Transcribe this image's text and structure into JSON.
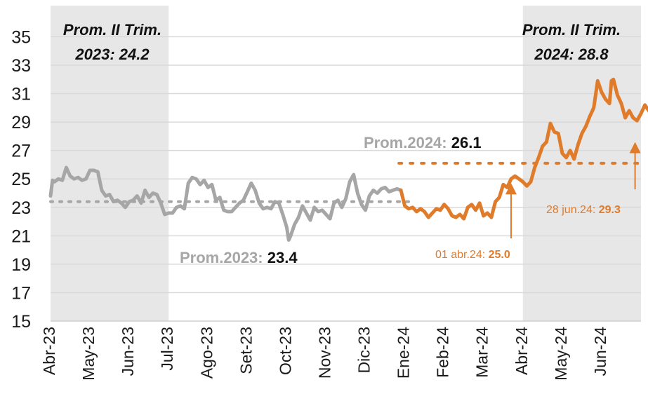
{
  "chart_data": {
    "type": "line",
    "ylim": [
      15,
      36.5
    ],
    "yticks": [
      "15",
      "17",
      "19",
      "21",
      "23",
      "25",
      "27",
      "29",
      "31",
      "33",
      "35"
    ],
    "x_categories": [
      "Abr-23",
      "May-23",
      "Jun-23",
      "Jul-23",
      "Ago-23",
      "Set-23",
      "Oct-23",
      "Nov-23",
      "Dic-23",
      "Ene-24",
      "Feb-24",
      "Mar-24",
      "Abr-24",
      "May-24",
      "Jun-24"
    ],
    "grid": true,
    "colors": {
      "series_2023": "#a6a6a6",
      "series_2024": "#e07b2a",
      "shade": "#e7e7e7",
      "grid": "#d9d9d9"
    },
    "shaded_periods": [
      {
        "from": 0,
        "to": 3,
        "label_line1": "Prom. II Trim.",
        "label_line2": "2023:  24.2"
      },
      {
        "from": 12,
        "to": 15,
        "label_line1": "Prom. II Trim.",
        "label_line2": "2024: 28.8"
      }
    ],
    "averages": [
      {
        "label": "Prom.2023: ",
        "value_text": "23.4",
        "value": 23.4,
        "from": 0,
        "to": 9.1,
        "color": "#a6a6a6"
      },
      {
        "label": "Prom.2024: ",
        "value_text": "26.1",
        "value": 26.1,
        "from": 8.85,
        "to": 15,
        "color": "#e07b2a"
      }
    ],
    "annotations": [
      {
        "label": "01 abr.24: ",
        "value_text": "25.0",
        "x": 11.7,
        "y": 24.7
      },
      {
        "label": "28 jun.24: ",
        "value_text": "29.3",
        "x": 14.85,
        "y": 27.5
      }
    ],
    "series": [
      {
        "color": "#a6a6a6",
        "points": [
          [
            0.0,
            23.8
          ],
          [
            0.05,
            24.9
          ],
          [
            0.1,
            24.8
          ],
          [
            0.2,
            25.0
          ],
          [
            0.3,
            24.9
          ],
          [
            0.4,
            25.8
          ],
          [
            0.5,
            25.2
          ],
          [
            0.6,
            25.0
          ],
          [
            0.7,
            25.1
          ],
          [
            0.8,
            24.9
          ],
          [
            0.9,
            25.0
          ],
          [
            1.0,
            25.6
          ],
          [
            1.1,
            25.6
          ],
          [
            1.2,
            25.5
          ],
          [
            1.3,
            24.2
          ],
          [
            1.4,
            23.8
          ],
          [
            1.5,
            23.9
          ],
          [
            1.6,
            23.4
          ],
          [
            1.7,
            23.5
          ],
          [
            1.8,
            23.3
          ],
          [
            1.9,
            23.0
          ],
          [
            2.0,
            23.4
          ],
          [
            2.1,
            23.5
          ],
          [
            2.2,
            23.8
          ],
          [
            2.3,
            23.3
          ],
          [
            2.4,
            24.2
          ],
          [
            2.5,
            23.7
          ],
          [
            2.6,
            24.0
          ],
          [
            2.7,
            23.9
          ],
          [
            2.8,
            23.3
          ],
          [
            2.9,
            22.5
          ],
          [
            3.0,
            22.6
          ],
          [
            3.1,
            22.6
          ],
          [
            3.2,
            23.0
          ],
          [
            3.3,
            23.1
          ],
          [
            3.4,
            22.9
          ],
          [
            3.5,
            24.7
          ],
          [
            3.6,
            25.1
          ],
          [
            3.7,
            25.0
          ],
          [
            3.8,
            24.6
          ],
          [
            3.9,
            24.9
          ],
          [
            4.0,
            24.4
          ],
          [
            4.1,
            24.6
          ],
          [
            4.2,
            23.5
          ],
          [
            4.3,
            23.7
          ],
          [
            4.4,
            22.8
          ],
          [
            4.5,
            22.7
          ],
          [
            4.6,
            22.7
          ],
          [
            4.7,
            23.0
          ],
          [
            4.8,
            23.3
          ],
          [
            4.9,
            23.5
          ],
          [
            5.0,
            24.1
          ],
          [
            5.1,
            24.7
          ],
          [
            5.2,
            24.2
          ],
          [
            5.3,
            23.3
          ],
          [
            5.4,
            22.9
          ],
          [
            5.5,
            23.0
          ],
          [
            5.6,
            22.9
          ],
          [
            5.7,
            23.4
          ],
          [
            5.8,
            23.3
          ],
          [
            5.9,
            22.5
          ],
          [
            6.0,
            21.6
          ],
          [
            6.05,
            20.7
          ],
          [
            6.1,
            21.0
          ],
          [
            6.2,
            21.8
          ],
          [
            6.3,
            22.3
          ],
          [
            6.4,
            23.1
          ],
          [
            6.5,
            22.6
          ],
          [
            6.6,
            22.1
          ],
          [
            6.7,
            23.0
          ],
          [
            6.8,
            22.7
          ],
          [
            6.9,
            22.8
          ],
          [
            7.0,
            22.5
          ],
          [
            7.1,
            22.2
          ],
          [
            7.2,
            23.3
          ],
          [
            7.3,
            23.5
          ],
          [
            7.4,
            23.0
          ],
          [
            7.5,
            23.6
          ],
          [
            7.6,
            24.8
          ],
          [
            7.7,
            25.3
          ],
          [
            7.8,
            24.0
          ],
          [
            7.9,
            23.2
          ],
          [
            8.0,
            22.8
          ],
          [
            8.1,
            23.8
          ],
          [
            8.2,
            24.2
          ],
          [
            8.3,
            24.0
          ],
          [
            8.4,
            24.3
          ],
          [
            8.5,
            24.4
          ],
          [
            8.6,
            24.1
          ],
          [
            8.7,
            24.2
          ],
          [
            8.8,
            24.3
          ],
          [
            8.9,
            24.2
          ]
        ]
      },
      {
        "color": "#e07b2a",
        "points": [
          [
            8.9,
            24.2
          ],
          [
            9.0,
            23.1
          ],
          [
            9.1,
            22.9
          ],
          [
            9.2,
            23.0
          ],
          [
            9.3,
            22.7
          ],
          [
            9.4,
            22.9
          ],
          [
            9.5,
            22.7
          ],
          [
            9.6,
            22.3
          ],
          [
            9.7,
            22.6
          ],
          [
            9.8,
            22.9
          ],
          [
            9.9,
            22.8
          ],
          [
            10.0,
            23.2
          ],
          [
            10.1,
            22.9
          ],
          [
            10.2,
            22.4
          ],
          [
            10.3,
            22.3
          ],
          [
            10.4,
            22.5
          ],
          [
            10.5,
            22.2
          ],
          [
            10.6,
            23.0
          ],
          [
            10.7,
            23.2
          ],
          [
            10.8,
            22.8
          ],
          [
            10.9,
            23.3
          ],
          [
            11.0,
            22.4
          ],
          [
            11.1,
            22.6
          ],
          [
            11.2,
            22.3
          ],
          [
            11.3,
            23.4
          ],
          [
            11.4,
            23.7
          ],
          [
            11.5,
            24.6
          ],
          [
            11.6,
            24.4
          ],
          [
            11.7,
            25.0
          ],
          [
            11.8,
            25.2
          ],
          [
            11.9,
            25.0
          ],
          [
            12.0,
            24.8
          ],
          [
            12.1,
            24.5
          ],
          [
            12.2,
            24.8
          ],
          [
            12.3,
            25.8
          ],
          [
            12.4,
            26.5
          ],
          [
            12.5,
            27.3
          ],
          [
            12.6,
            27.6
          ],
          [
            12.7,
            28.9
          ],
          [
            12.8,
            28.3
          ],
          [
            12.9,
            28.2
          ],
          [
            13.0,
            26.8
          ],
          [
            13.1,
            26.5
          ],
          [
            13.2,
            27.0
          ],
          [
            13.3,
            26.4
          ],
          [
            13.4,
            27.4
          ],
          [
            13.5,
            28.2
          ],
          [
            13.6,
            28.7
          ],
          [
            13.7,
            29.4
          ],
          [
            13.8,
            30.0
          ],
          [
            13.9,
            31.9
          ],
          [
            14.0,
            31.1
          ],
          [
            14.1,
            30.6
          ],
          [
            14.2,
            30.3
          ],
          [
            14.25,
            31.9
          ],
          [
            14.3,
            32.0
          ],
          [
            14.4,
            30.9
          ],
          [
            14.5,
            30.3
          ],
          [
            14.6,
            29.3
          ],
          [
            14.7,
            29.8
          ],
          [
            14.8,
            29.3
          ],
          [
            14.9,
            29.1
          ],
          [
            15.0,
            29.6
          ],
          [
            15.1,
            30.2
          ],
          [
            15.2,
            29.8
          ],
          [
            15.3,
            29.3
          ],
          [
            15.4,
            29.0
          ],
          [
            15.5,
            29.2
          ]
        ]
      }
    ]
  }
}
